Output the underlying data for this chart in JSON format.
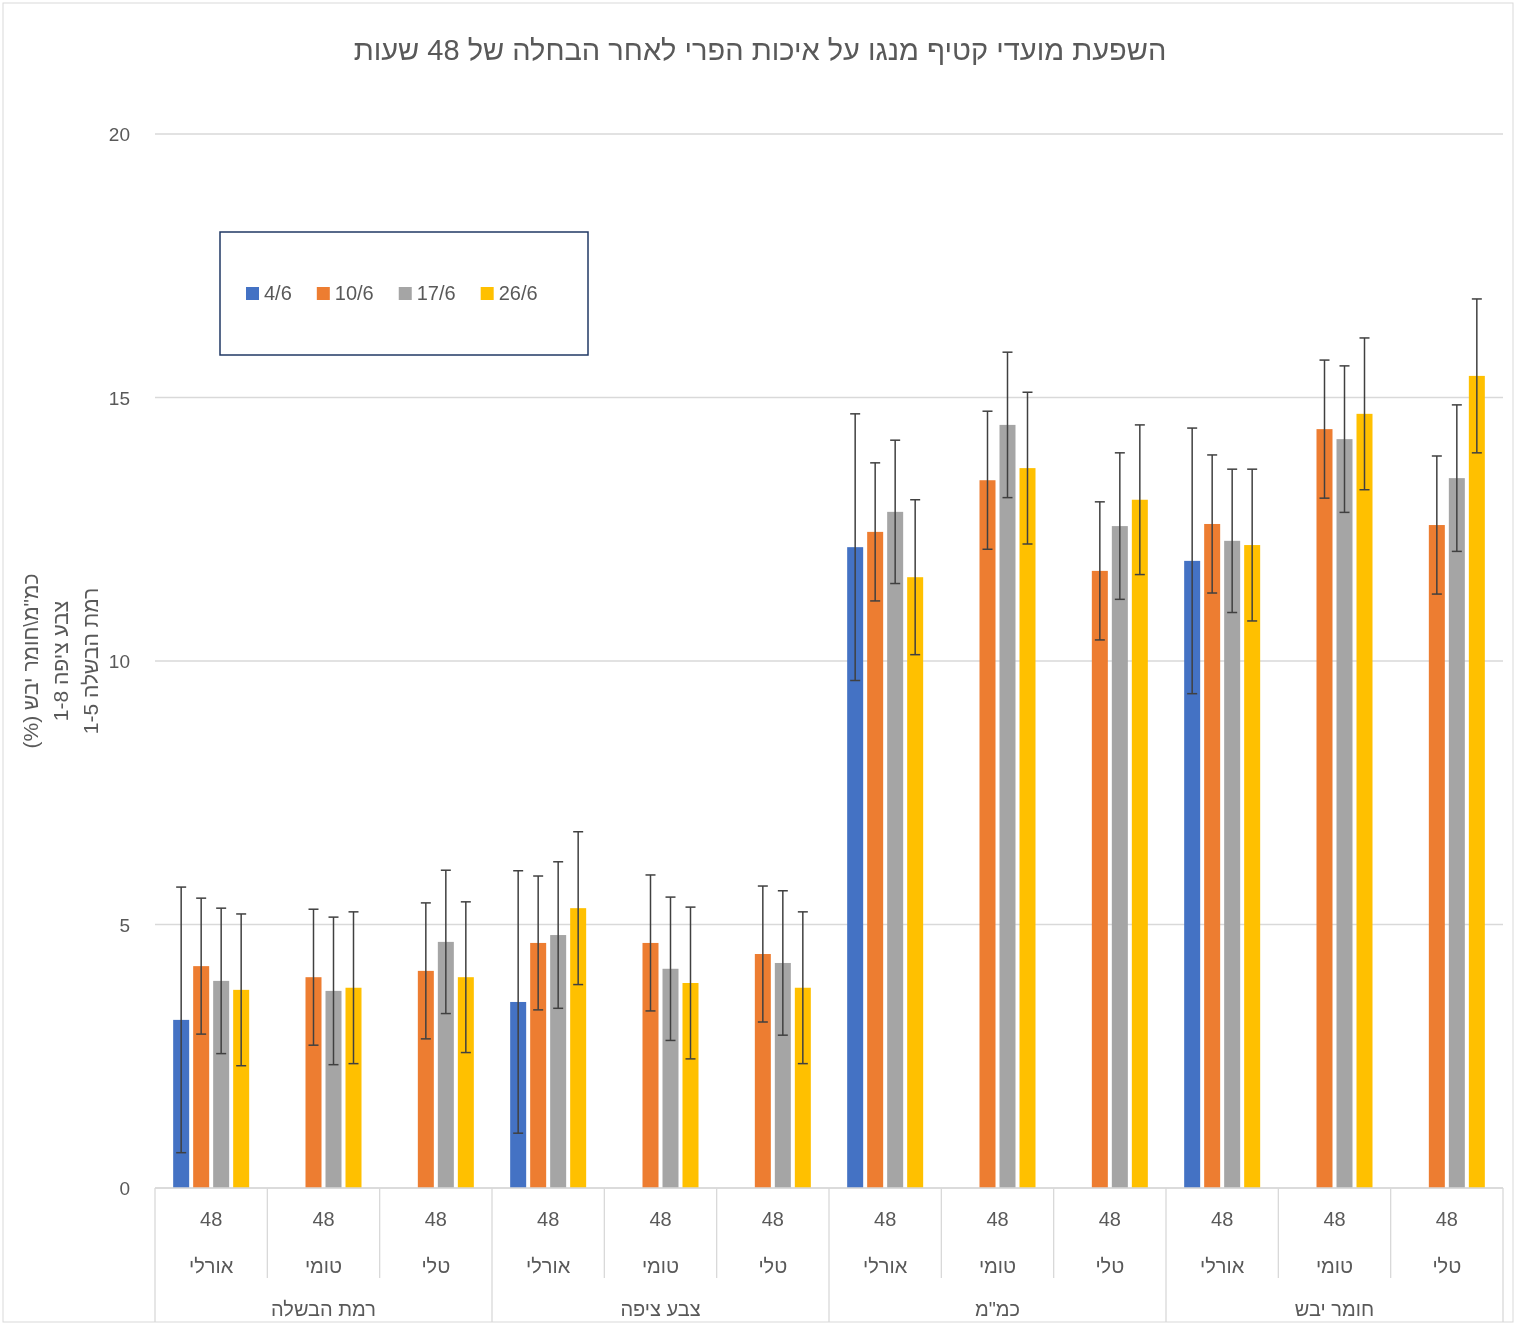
{
  "chart_data": {
    "type": "bar",
    "title": "השפעת מועדי קטיף מנגו על איכות הפרי לאחר הבחלה של 48 שעות",
    "ylabel": "כמ\"מ\\חומר יבש (%)\nצבע ציפה 1-8\nרמת הבשלה 1-5",
    "categories": [
      "48\nאורלי",
      "48\nטומי",
      "48\nטלי",
      "48\nאורלי",
      "48\nטומי",
      "48\nטלי",
      "48\nאורלי",
      "48\nטומי",
      "48\nטלי",
      "48\nאורלי",
      "48\nטומי",
      "48\nטלי"
    ],
    "annotations": [
      "רמת הבשלה",
      "צבע ציפה",
      "כמ\"מ",
      "חומר יבש"
    ],
    "series": [
      {
        "name": "4/6",
        "color": "#4472c4",
        "values": [
          3.19,
          null,
          null,
          3.53,
          null,
          null,
          12.16,
          null,
          null,
          11.9,
          null,
          null
        ],
        "errors": [
          2.52,
          null,
          null,
          2.49,
          null,
          null,
          2.53,
          null,
          null,
          2.52,
          null,
          null
        ]
      },
      {
        "name": "10/6",
        "color": "#ed7d31",
        "values": [
          4.21,
          4.0,
          4.12,
          4.65,
          4.65,
          4.44,
          12.45,
          13.43,
          11.71,
          12.6,
          14.4,
          12.58
        ],
        "errors": [
          1.29,
          1.29,
          1.29,
          1.27,
          1.29,
          1.29,
          1.31,
          1.31,
          1.31,
          1.31,
          1.31,
          1.31
        ]
      },
      {
        "name": "17/6",
        "color": "#a5a5a5",
        "values": [
          3.93,
          3.74,
          4.67,
          4.8,
          4.16,
          4.27,
          12.83,
          14.48,
          12.56,
          12.28,
          14.21,
          13.47
        ],
        "errors": [
          1.38,
          1.4,
          1.36,
          1.39,
          1.36,
          1.37,
          1.36,
          1.38,
          1.39,
          1.36,
          1.39,
          1.39
        ]
      },
      {
        "name": "26/6",
        "color": "#ffc000",
        "values": [
          3.76,
          3.8,
          4.0,
          5.31,
          3.89,
          3.8,
          11.59,
          13.66,
          13.06,
          12.2,
          14.69,
          15.41
        ],
        "errors": [
          1.44,
          1.44,
          1.43,
          1.45,
          1.44,
          1.44,
          1.47,
          1.44,
          1.42,
          1.44,
          1.44,
          1.46
        ]
      }
    ],
    "ylim": [
      0,
      20
    ],
    "yticks": [
      0,
      5,
      10,
      15,
      20
    ],
    "grid": "y",
    "legend": "top left"
  }
}
